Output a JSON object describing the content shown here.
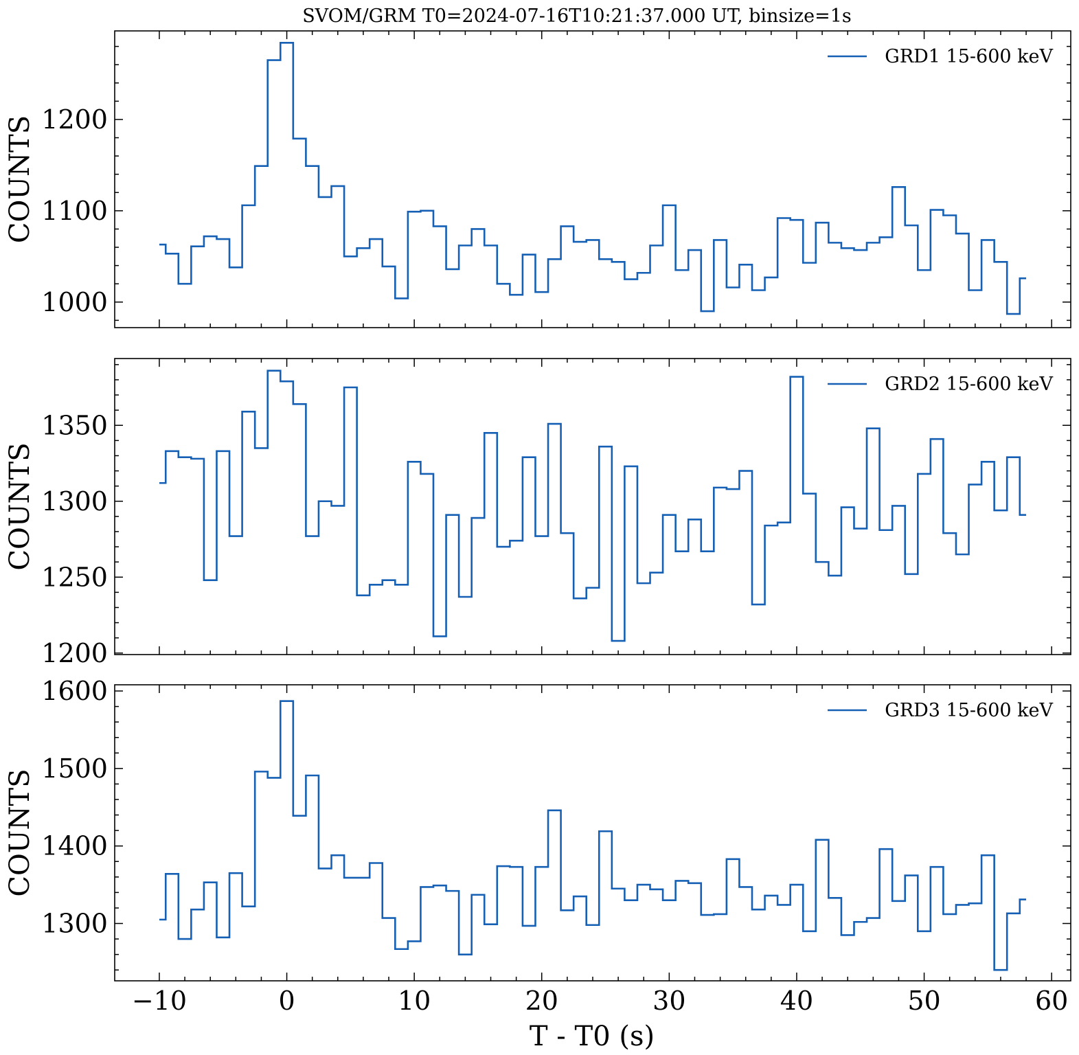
{
  "chart_data": {
    "type": "line",
    "title": "SVOM/GRM T0=2024-07-16T10:21:37.000 UT, binsize=1s",
    "xlabel": "T - T0 (s)",
    "xlim": [
      -13.5,
      61.5
    ],
    "xticks": [
      -10,
      0,
      10,
      20,
      30,
      40,
      50,
      60
    ],
    "xtick_labels": [
      "−10",
      "0",
      "10",
      "20",
      "30",
      "40",
      "50",
      "60"
    ],
    "color": "#1560b5",
    "panels": [
      {
        "name": "GRD1 15-600 keV",
        "ylabel": "COUNTS",
        "ylim": [
          972,
          1297
        ],
        "yticks": [
          1000,
          1100,
          1200
        ],
        "legend": "top-right",
        "x_start": -10,
        "values": [
          1063,
          1053,
          1020,
          1061,
          1072,
          1069,
          1038,
          1106,
          1149,
          1265,
          1284,
          1179,
          1149,
          1115,
          1127,
          1050,
          1059,
          1069,
          1039,
          1004,
          1099,
          1100,
          1083,
          1036,
          1062,
          1080,
          1062,
          1020,
          1008,
          1052,
          1011,
          1047,
          1083,
          1066,
          1068,
          1047,
          1044,
          1025,
          1032,
          1062,
          1106,
          1035,
          1057,
          990,
          1068,
          1016,
          1041,
          1013,
          1027,
          1092,
          1090,
          1043,
          1087,
          1065,
          1059,
          1057,
          1065,
          1071,
          1126,
          1084,
          1035,
          1101,
          1095,
          1075,
          1013,
          1068,
          1044,
          987,
          1026
        ]
      },
      {
        "name": "GRD2 15-600 keV",
        "ylabel": "COUNTS",
        "ylim": [
          1199,
          1394
        ],
        "yticks": [
          1200,
          1250,
          1300,
          1350
        ],
        "legend": "top-right",
        "x_start": -10,
        "values": [
          1312,
          1333,
          1329,
          1328,
          1248,
          1333,
          1277,
          1359,
          1335,
          1386,
          1379,
          1364,
          1277,
          1300,
          1297,
          1375,
          1238,
          1245,
          1248,
          1245,
          1326,
          1318,
          1211,
          1291,
          1237,
          1289,
          1345,
          1270,
          1274,
          1329,
          1277,
          1351,
          1279,
          1236,
          1243,
          1336,
          1208,
          1323,
          1246,
          1253,
          1291,
          1267,
          1288,
          1267,
          1309,
          1308,
          1320,
          1232,
          1284,
          1286,
          1382,
          1305,
          1260,
          1251,
          1296,
          1282,
          1348,
          1281,
          1297,
          1252,
          1318,
          1341,
          1279,
          1265,
          1311,
          1326,
          1294,
          1329,
          1291
        ]
      },
      {
        "name": "GRD3 15-600 keV",
        "ylabel": "COUNTS",
        "ylim": [
          1226,
          1608
        ],
        "yticks": [
          1300,
          1400,
          1500,
          1600
        ],
        "legend": "top-right",
        "x_start": -10,
        "values": [
          1305,
          1364,
          1280,
          1318,
          1353,
          1282,
          1365,
          1322,
          1496,
          1488,
          1587,
          1439,
          1491,
          1371,
          1388,
          1359,
          1359,
          1378,
          1307,
          1267,
          1277,
          1347,
          1349,
          1342,
          1260,
          1337,
          1299,
          1374,
          1373,
          1297,
          1373,
          1446,
          1317,
          1335,
          1298,
          1419,
          1345,
          1330,
          1350,
          1344,
          1330,
          1355,
          1352,
          1311,
          1312,
          1383,
          1347,
          1318,
          1336,
          1324,
          1350,
          1290,
          1408,
          1333,
          1285,
          1302,
          1307,
          1396,
          1329,
          1362,
          1290,
          1373,
          1312,
          1324,
          1326,
          1388,
          1240,
          1313,
          1331
        ]
      }
    ]
  }
}
